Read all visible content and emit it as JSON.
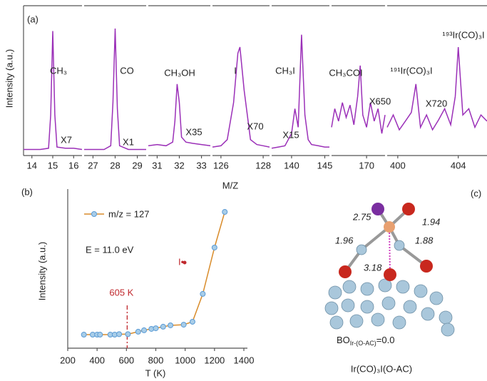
{
  "chart_data": [
    {
      "type": "line",
      "label": "(a)",
      "y_label": "Intensity (a.u.)",
      "x_label": "M/Z",
      "color": "#9b30b8",
      "ylim": [
        0,
        1
      ],
      "segments": [
        {
          "xlim": [
            13.6,
            16.4
          ],
          "xticks": [
            14,
            15,
            16
          ],
          "x": [
            13.6,
            14,
            14.4,
            14.8,
            14.9,
            15,
            15.1,
            15.2,
            15.6,
            16,
            16.4
          ],
          "values": [
            0.02,
            0.02,
            0.02,
            0.03,
            0.3,
            0.98,
            0.3,
            0.04,
            0.03,
            0.03,
            0.02
          ],
          "annotations": [
            "CH₃",
            "X7"
          ]
        },
        {
          "xlim": [
            26.6,
            29.4
          ],
          "xticks": [
            27,
            28,
            29
          ],
          "x": [
            26.6,
            27,
            27.5,
            27.8,
            27.9,
            28,
            28.1,
            28.2,
            28.6,
            29,
            29.4
          ],
          "values": [
            0.02,
            0.02,
            0.02,
            0.05,
            0.4,
            1.0,
            0.35,
            0.05,
            0.02,
            0.02,
            0.02
          ],
          "annotations": [
            "CO",
            "X1"
          ]
        },
        {
          "xlim": [
            30.6,
            33.4
          ],
          "xticks": [
            31,
            32,
            33
          ],
          "x": [
            30.6,
            31,
            31.4,
            31.7,
            31.8,
            31.9,
            32,
            32.1,
            32.3,
            32.6,
            33,
            33.4
          ],
          "values": [
            0.05,
            0.06,
            0.05,
            0.08,
            0.25,
            0.55,
            0.4,
            0.12,
            0.08,
            0.07,
            0.06,
            0.05
          ],
          "annotations": [
            "CH₃OH",
            "X35"
          ]
        },
        {
          "xlim": [
            125.6,
            128.3
          ],
          "xticks": [
            126,
            128
          ],
          "x": [
            125.6,
            126,
            126.3,
            126.6,
            126.8,
            126.9,
            127.1,
            127.4,
            127.7,
            128,
            128.3
          ],
          "values": [
            0.04,
            0.05,
            0.1,
            0.4,
            0.8,
            0.85,
            0.5,
            0.1,
            0.06,
            0.05,
            0.04
          ],
          "annotations": [
            "I",
            "X70"
          ]
        },
        {
          "xlim": [
            137,
            145.7
          ],
          "xticks": [
            140,
            145
          ],
          "x": [
            137,
            138,
            139,
            140,
            140.5,
            141,
            141.5,
            142,
            142.5,
            143,
            144,
            145,
            145.7
          ],
          "values": [
            0.03,
            0.04,
            0.05,
            0.15,
            0.35,
            0.2,
            0.95,
            0.3,
            0.1,
            0.06,
            0.05,
            0.04,
            0.04
          ],
          "annotations": [
            "CH₃I",
            "X15"
          ]
        },
        {
          "xlim": [
            164.5,
            172.9
          ],
          "xticks": [
            170
          ],
          "x": [
            164.5,
            165,
            165.6,
            166.2,
            166.8,
            167.4,
            168,
            168.6,
            169,
            169.4,
            170,
            170.6,
            171.2,
            171.8,
            172.4,
            172.9
          ],
          "values": [
            0.2,
            0.35,
            0.25,
            0.4,
            0.28,
            0.38,
            0.22,
            0.45,
            0.7,
            0.3,
            0.2,
            0.4,
            0.25,
            0.35,
            0.15,
            0.3
          ],
          "annotations": [
            "CH₃COI",
            "X650"
          ]
        },
        {
          "xlim": [
            399.3,
            405.9
          ],
          "xticks": [
            400,
            404
          ],
          "x": [
            399.3,
            399.7,
            400.1,
            400.5,
            400.9,
            401.2,
            401.5,
            401.9,
            402.3,
            402.7,
            403.1,
            403.5,
            403.8,
            404,
            404.3,
            404.7,
            405.1,
            405.5,
            405.9
          ],
          "values": [
            0.2,
            0.3,
            0.18,
            0.25,
            0.32,
            0.55,
            0.2,
            0.3,
            0.18,
            0.26,
            0.35,
            0.22,
            0.45,
            0.85,
            0.3,
            0.35,
            0.2,
            0.3,
            0.25
          ],
          "annotations": [
            "¹⁹¹Ir(CO)₃I",
            "X720",
            "¹⁹³Ir(CO)₃I"
          ]
        }
      ]
    },
    {
      "type": "line",
      "label": "(b)",
      "y_label": "Intensity (a.u.)",
      "x_label": "T (K)",
      "xlim": [
        200,
        1400
      ],
      "xticks": [
        200,
        400,
        600,
        800,
        1000,
        1200,
        1400
      ],
      "ylim": [
        0,
        1
      ],
      "x": [
        310,
        370,
        400,
        420,
        490,
        520,
        550,
        610,
        680,
        720,
        770,
        800,
        850,
        900,
        990,
        1050,
        1120,
        1200,
        1270
      ],
      "series": [
        {
          "name": "m/z = 127",
          "color": "#d98c2b",
          "marker_color": "#a8cde8",
          "values": [
            0.087,
            0.087,
            0.087,
            0.087,
            0.087,
            0.087,
            0.09,
            0.09,
            0.106,
            0.115,
            0.124,
            0.128,
            0.138,
            0.147,
            0.151,
            0.17,
            0.349,
            0.647,
            0.876
          ]
        }
      ],
      "annotations": [
        "E = 11.0 eV",
        "I•"
      ],
      "vline": {
        "value": 605,
        "label": "605 K",
        "color": "#c0282d"
      }
    }
  ],
  "diagram": {
    "label": "(c)",
    "distances": [
      "2.75",
      "1.94",
      "1.96",
      "1.88",
      "3.18"
    ],
    "bond_order": {
      "prefix": "BO",
      "subscript": "Ir-(O-AC)",
      "value": "=0.0"
    },
    "caption": "Ir(CO)₃I(O-AC)"
  }
}
